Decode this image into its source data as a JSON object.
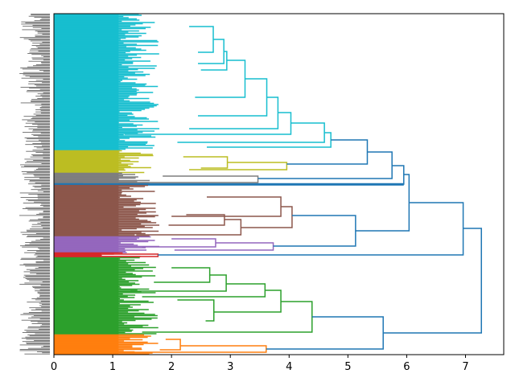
{
  "chart_data": {
    "type": "dendrogram",
    "orientation": "left",
    "title": "",
    "xlabel": "",
    "ylabel": "",
    "xlim": [
      0,
      7.65
    ],
    "xticks": [
      0,
      1,
      2,
      3,
      4,
      5,
      6,
      7
    ],
    "xtick_labels": [
      "0",
      "1",
      "2",
      "3",
      "4",
      "5",
      "6",
      "7"
    ],
    "leaf_count_units": 424,
    "leaf_labels_note": "dense, overlapping, illegible leaf labels",
    "colors": {
      "cyan": "#17becf",
      "olive": "#bcbd22",
      "gray": "#7f7f7f",
      "brown": "#8c564b",
      "purple": "#9467bd",
      "red": "#d62728",
      "green": "#2ca02c",
      "orange": "#ff7f0e",
      "above_threshold": "#1f77b4"
    },
    "clusters": [
      {
        "name": "cyan",
        "color": "cyan",
        "leaf_range": [
          0,
          170
        ],
        "merge_height": 4.71
      },
      {
        "name": "olive",
        "color": "olive",
        "leaf_range": [
          170,
          198
        ],
        "merge_height": 3.96
      },
      {
        "name": "gray",
        "color": "gray",
        "leaf_range": [
          198,
          211
        ],
        "merge_height": 3.47
      },
      {
        "name": "single-blue",
        "color": "above_threshold",
        "leaf_range": [
          211,
          213
        ],
        "merge_height": 0
      },
      {
        "name": "brown",
        "color": "brown",
        "leaf_range": [
          213,
          277
        ],
        "merge_height": 4.05
      },
      {
        "name": "purple",
        "color": "purple",
        "leaf_range": [
          277,
          297
        ],
        "merge_height": 3.73
      },
      {
        "name": "red",
        "color": "red",
        "leaf_range": [
          297,
          303
        ],
        "merge_height": 1.77
      },
      {
        "name": "green",
        "color": "green",
        "leaf_range": [
          303,
          399
        ],
        "merge_height": 4.39
      },
      {
        "name": "orange",
        "color": "orange",
        "leaf_range": [
          399,
          424
        ],
        "merge_height": 3.61
      }
    ],
    "internal_links": [
      {
        "color": "cyan",
        "h": 2.71,
        "y1": 16,
        "y2": 48,
        "h1": 2.3,
        "h2": 2.45
      },
      {
        "color": "cyan",
        "h": 2.89,
        "y1": 32,
        "y2": 62,
        "h1": 2.71,
        "h2": 2.45
      },
      {
        "color": "cyan",
        "h": 2.94,
        "y1": 47,
        "y2": 70,
        "h1": 2.89,
        "h2": 2.5
      },
      {
        "color": "cyan",
        "h": 3.25,
        "y1": 58,
        "y2": 104,
        "h1": 2.94,
        "h2": 2.4
      },
      {
        "color": "cyan",
        "h": 3.62,
        "y1": 81,
        "y2": 127,
        "h1": 3.25,
        "h2": 2.45
      },
      {
        "color": "cyan",
        "h": 3.81,
        "y1": 104,
        "y2": 143,
        "h1": 3.62,
        "h2": 2.3
      },
      {
        "color": "cyan",
        "h": 4.03,
        "y1": 123,
        "y2": 150,
        "h1": 3.81,
        "h2": 1.2
      },
      {
        "color": "cyan",
        "h": 4.6,
        "y1": 136,
        "y2": 160,
        "h1": 4.03,
        "h2": 2.1
      },
      {
        "color": "cyan",
        "h": 4.71,
        "y1": 148,
        "y2": 166,
        "h1": 4.6,
        "h2": 2.6
      },
      {
        "color": "olive",
        "h": 2.95,
        "y1": 178,
        "y2": 192,
        "h1": 2.2,
        "h2": 2.5
      },
      {
        "color": "olive",
        "h": 3.96,
        "y1": 185,
        "y2": 194,
        "h1": 2.95,
        "h2": 2.3
      },
      {
        "color": "gray",
        "h": 3.47,
        "y1": 202,
        "y2": 210,
        "h1": 1.85,
        "h2": 0.5
      },
      {
        "color": "brown",
        "h": 3.86,
        "y1": 228,
        "y2": 252,
        "h1": 2.6,
        "h2": 2.0
      },
      {
        "color": "brown",
        "h": 2.9,
        "y1": 250,
        "y2": 263,
        "h1": 2.25,
        "h2": 1.95
      },
      {
        "color": "brown",
        "h": 3.18,
        "y1": 256,
        "y2": 275,
        "h1": 2.9,
        "h2": 1.4
      },
      {
        "color": "brown",
        "h": 4.05,
        "y1": 240,
        "y2": 266,
        "h1": 3.86,
        "h2": 3.18
      },
      {
        "color": "purple",
        "h": 2.75,
        "y1": 280,
        "y2": 290,
        "h1": 2.0,
        "h2": 1.5
      },
      {
        "color": "purple",
        "h": 3.73,
        "y1": 285,
        "y2": 294,
        "h1": 2.75,
        "h2": 2.05
      },
      {
        "color": "red",
        "h": 1.77,
        "y1": 299,
        "y2": 302,
        "h1": 0.8,
        "h2": 0.0
      },
      {
        "color": "green",
        "h": 2.65,
        "y1": 316,
        "y2": 334,
        "h1": 2.0,
        "h2": 1.7
      },
      {
        "color": "green",
        "h": 2.93,
        "y1": 325,
        "y2": 345,
        "h1": 2.65,
        "h2": 1.3
      },
      {
        "color": "green",
        "h": 3.59,
        "y1": 336,
        "y2": 352,
        "h1": 2.93,
        "h2": 1.5
      },
      {
        "color": "green",
        "h": 2.72,
        "y1": 356,
        "y2": 382,
        "h1": 2.1,
        "h2": 2.58
      },
      {
        "color": "green",
        "h": 3.86,
        "y1": 344,
        "y2": 371,
        "h1": 3.59,
        "h2": 2.72
      },
      {
        "color": "green",
        "h": 4.39,
        "y1": 358,
        "y2": 396,
        "h1": 3.86,
        "h2": 1.5
      },
      {
        "color": "orange",
        "h": 2.15,
        "y1": 405,
        "y2": 418,
        "h1": 1.9,
        "h2": 1.8
      },
      {
        "color": "orange",
        "h": 3.61,
        "y1": 413,
        "y2": 421,
        "h1": 2.15,
        "h2": 1.0
      },
      {
        "color": "above_threshold",
        "h": 5.33,
        "y1": 157,
        "y2": 187,
        "h1": 4.71,
        "h2": 3.96
      },
      {
        "color": "above_threshold",
        "h": 5.75,
        "y1": 172,
        "y2": 205,
        "h1": 5.33,
        "h2": 3.47
      },
      {
        "color": "above_threshold",
        "h": 5.95,
        "y1": 189,
        "y2": 212,
        "h1": 5.75,
        "h2": 0.0
      },
      {
        "color": "above_threshold",
        "h": 5.13,
        "y1": 251,
        "y2": 289,
        "h1": 4.05,
        "h2": 3.73
      },
      {
        "color": "above_threshold",
        "h": 6.04,
        "y1": 200,
        "y2": 270,
        "h1": 5.95,
        "h2": 5.13
      },
      {
        "color": "above_threshold",
        "h": 6.96,
        "y1": 235,
        "y2": 300,
        "h1": 6.04,
        "h2": 1.77
      },
      {
        "color": "above_threshold",
        "h": 5.6,
        "y1": 377,
        "y2": 417,
        "h1": 4.39,
        "h2": 3.61
      },
      {
        "color": "above_threshold",
        "h": 7.27,
        "y1": 267,
        "y2": 397,
        "h1": 6.96,
        "h2": 5.6
      }
    ]
  }
}
